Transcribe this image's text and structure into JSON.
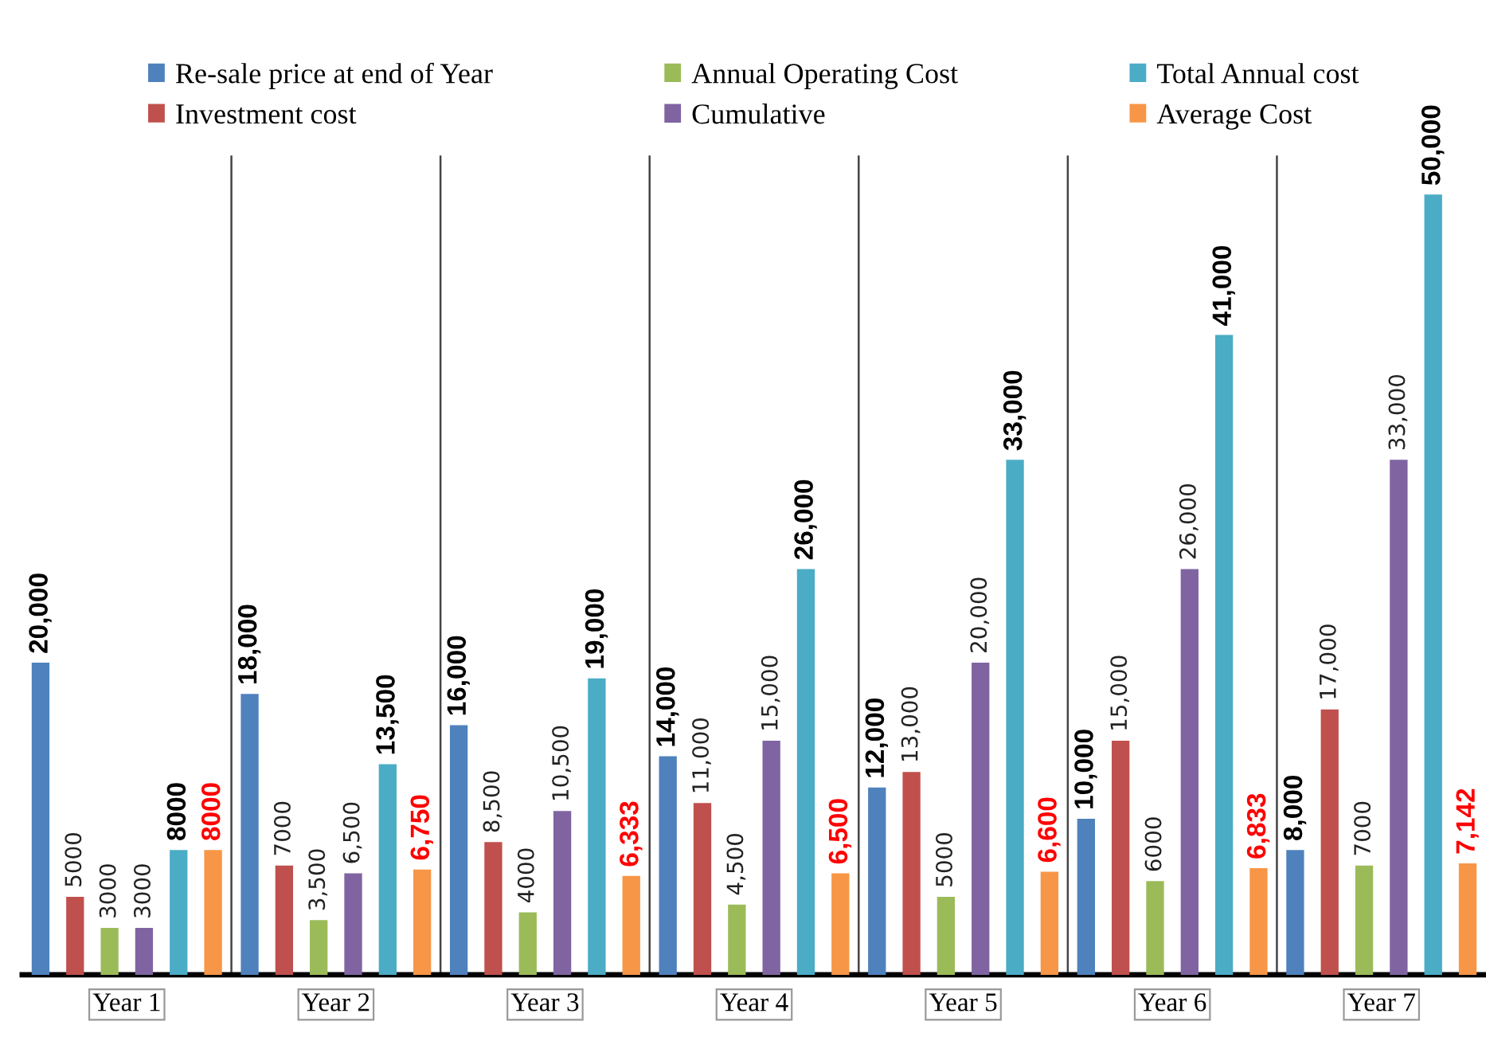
{
  "chart_data": {
    "type": "bar",
    "categories": [
      "Year 1",
      "Year 2",
      "Year 3",
      "Year 4",
      "Year 5",
      "Year 6",
      "Year 7"
    ],
    "series": [
      {
        "name": "Re-sale price at end of Year",
        "color": "#4f81bd",
        "values": [
          20000,
          18000,
          16000,
          14000,
          12000,
          10000,
          8000
        ],
        "value_labels": [
          "20,000",
          "18,000",
          "16,000",
          "14,000",
          "12,000",
          "10,000",
          "8,000"
        ]
      },
      {
        "name": "Investment cost",
        "color": "#c0504d",
        "values": [
          5000,
          7000,
          8500,
          11000,
          13000,
          15000,
          17000
        ],
        "value_labels": [
          "5000",
          "7000",
          "8,500",
          "11,000",
          "13,000",
          "15,000",
          "17,000"
        ]
      },
      {
        "name": "Annual Operating Cost",
        "color": "#9bbb59",
        "values": [
          3000,
          3500,
          4000,
          4500,
          5000,
          6000,
          7000
        ],
        "value_labels": [
          "3000",
          "3,500",
          "4000",
          "4,500",
          "5000",
          "6000",
          "7000"
        ]
      },
      {
        "name": "Cumulative",
        "color": "#8064a2",
        "values": [
          3000,
          6500,
          10500,
          15000,
          20000,
          26000,
          33000
        ],
        "value_labels": [
          "3000",
          "6,500",
          "10,500",
          "15,000",
          "20,000",
          "26,000",
          "33,000"
        ]
      },
      {
        "name": "Total Annual cost",
        "color": "#4bacc6",
        "values": [
          8000,
          13500,
          19000,
          26000,
          33000,
          41000,
          50000
        ],
        "value_labels": [
          "8000",
          "13,500",
          "19,000",
          "26,000",
          "33,000",
          "41,000",
          "50,000"
        ]
      },
      {
        "name": "Average Cost",
        "color": "#f79646",
        "values": [
          8000,
          6750,
          6333,
          6500,
          6600,
          6833,
          7142
        ],
        "value_labels": [
          "8000",
          "6,750",
          "6,333",
          "6,500",
          "6,600",
          "6,833",
          "7,142"
        ]
      }
    ],
    "legend": "top",
    "grid": "x",
    "tick_labels": "x"
  }
}
